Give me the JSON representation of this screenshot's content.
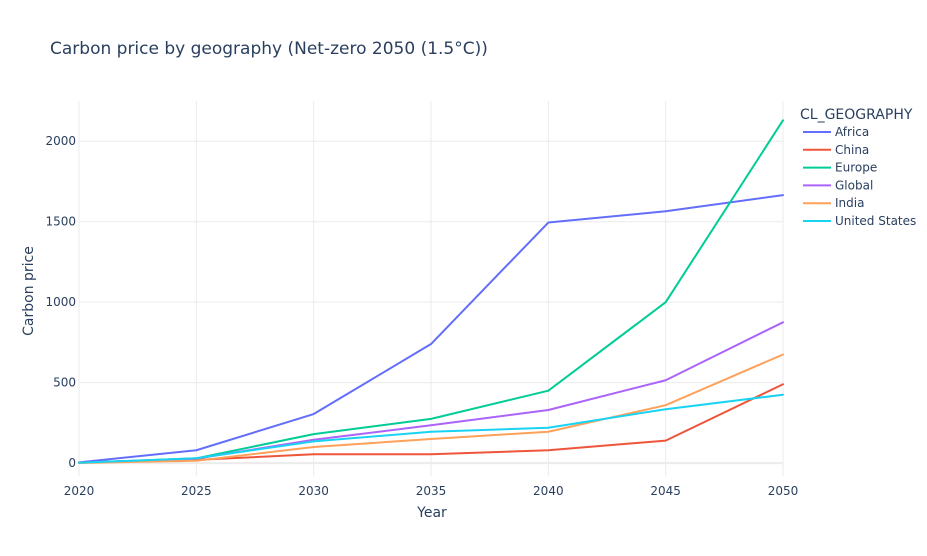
{
  "chart_data": {
    "type": "line",
    "title": "Carbon price by geography (Net-zero 2050 (1.5°C))",
    "xlabel": "Year",
    "ylabel": "Carbon price",
    "legend_title": "CL_GEOGRAPHY",
    "legend_position": "top-right",
    "grid": true,
    "xlim": [
      2020,
      2050
    ],
    "ylim": [
      -80,
      2250
    ],
    "x_ticks": [
      2020,
      2025,
      2030,
      2035,
      2040,
      2045,
      2050
    ],
    "y_ticks": [
      0,
      500,
      1000,
      1500,
      2000
    ],
    "x": [
      2020,
      2025,
      2030,
      2035,
      2040,
      2045,
      2050
    ],
    "series": [
      {
        "name": "Africa",
        "color": "#636efa",
        "values": [
          5,
          80,
          305,
          740,
          1495,
          1565,
          1665
        ]
      },
      {
        "name": "China",
        "color": "#ef553b",
        "values": [
          2,
          20,
          55,
          55,
          80,
          140,
          490
        ]
      },
      {
        "name": "Europe",
        "color": "#00cc96",
        "values": [
          2,
          30,
          180,
          275,
          450,
          1000,
          2130
        ]
      },
      {
        "name": "Global",
        "color": "#ab63fa",
        "values": [
          2,
          28,
          145,
          235,
          330,
          515,
          875
        ]
      },
      {
        "name": "India",
        "color": "#ffa15a",
        "values": [
          1,
          15,
          100,
          150,
          195,
          360,
          675
        ]
      },
      {
        "name": "United States",
        "color": "#19d3f3",
        "values": [
          2,
          30,
          135,
          195,
          220,
          335,
          425
        ]
      }
    ]
  }
}
